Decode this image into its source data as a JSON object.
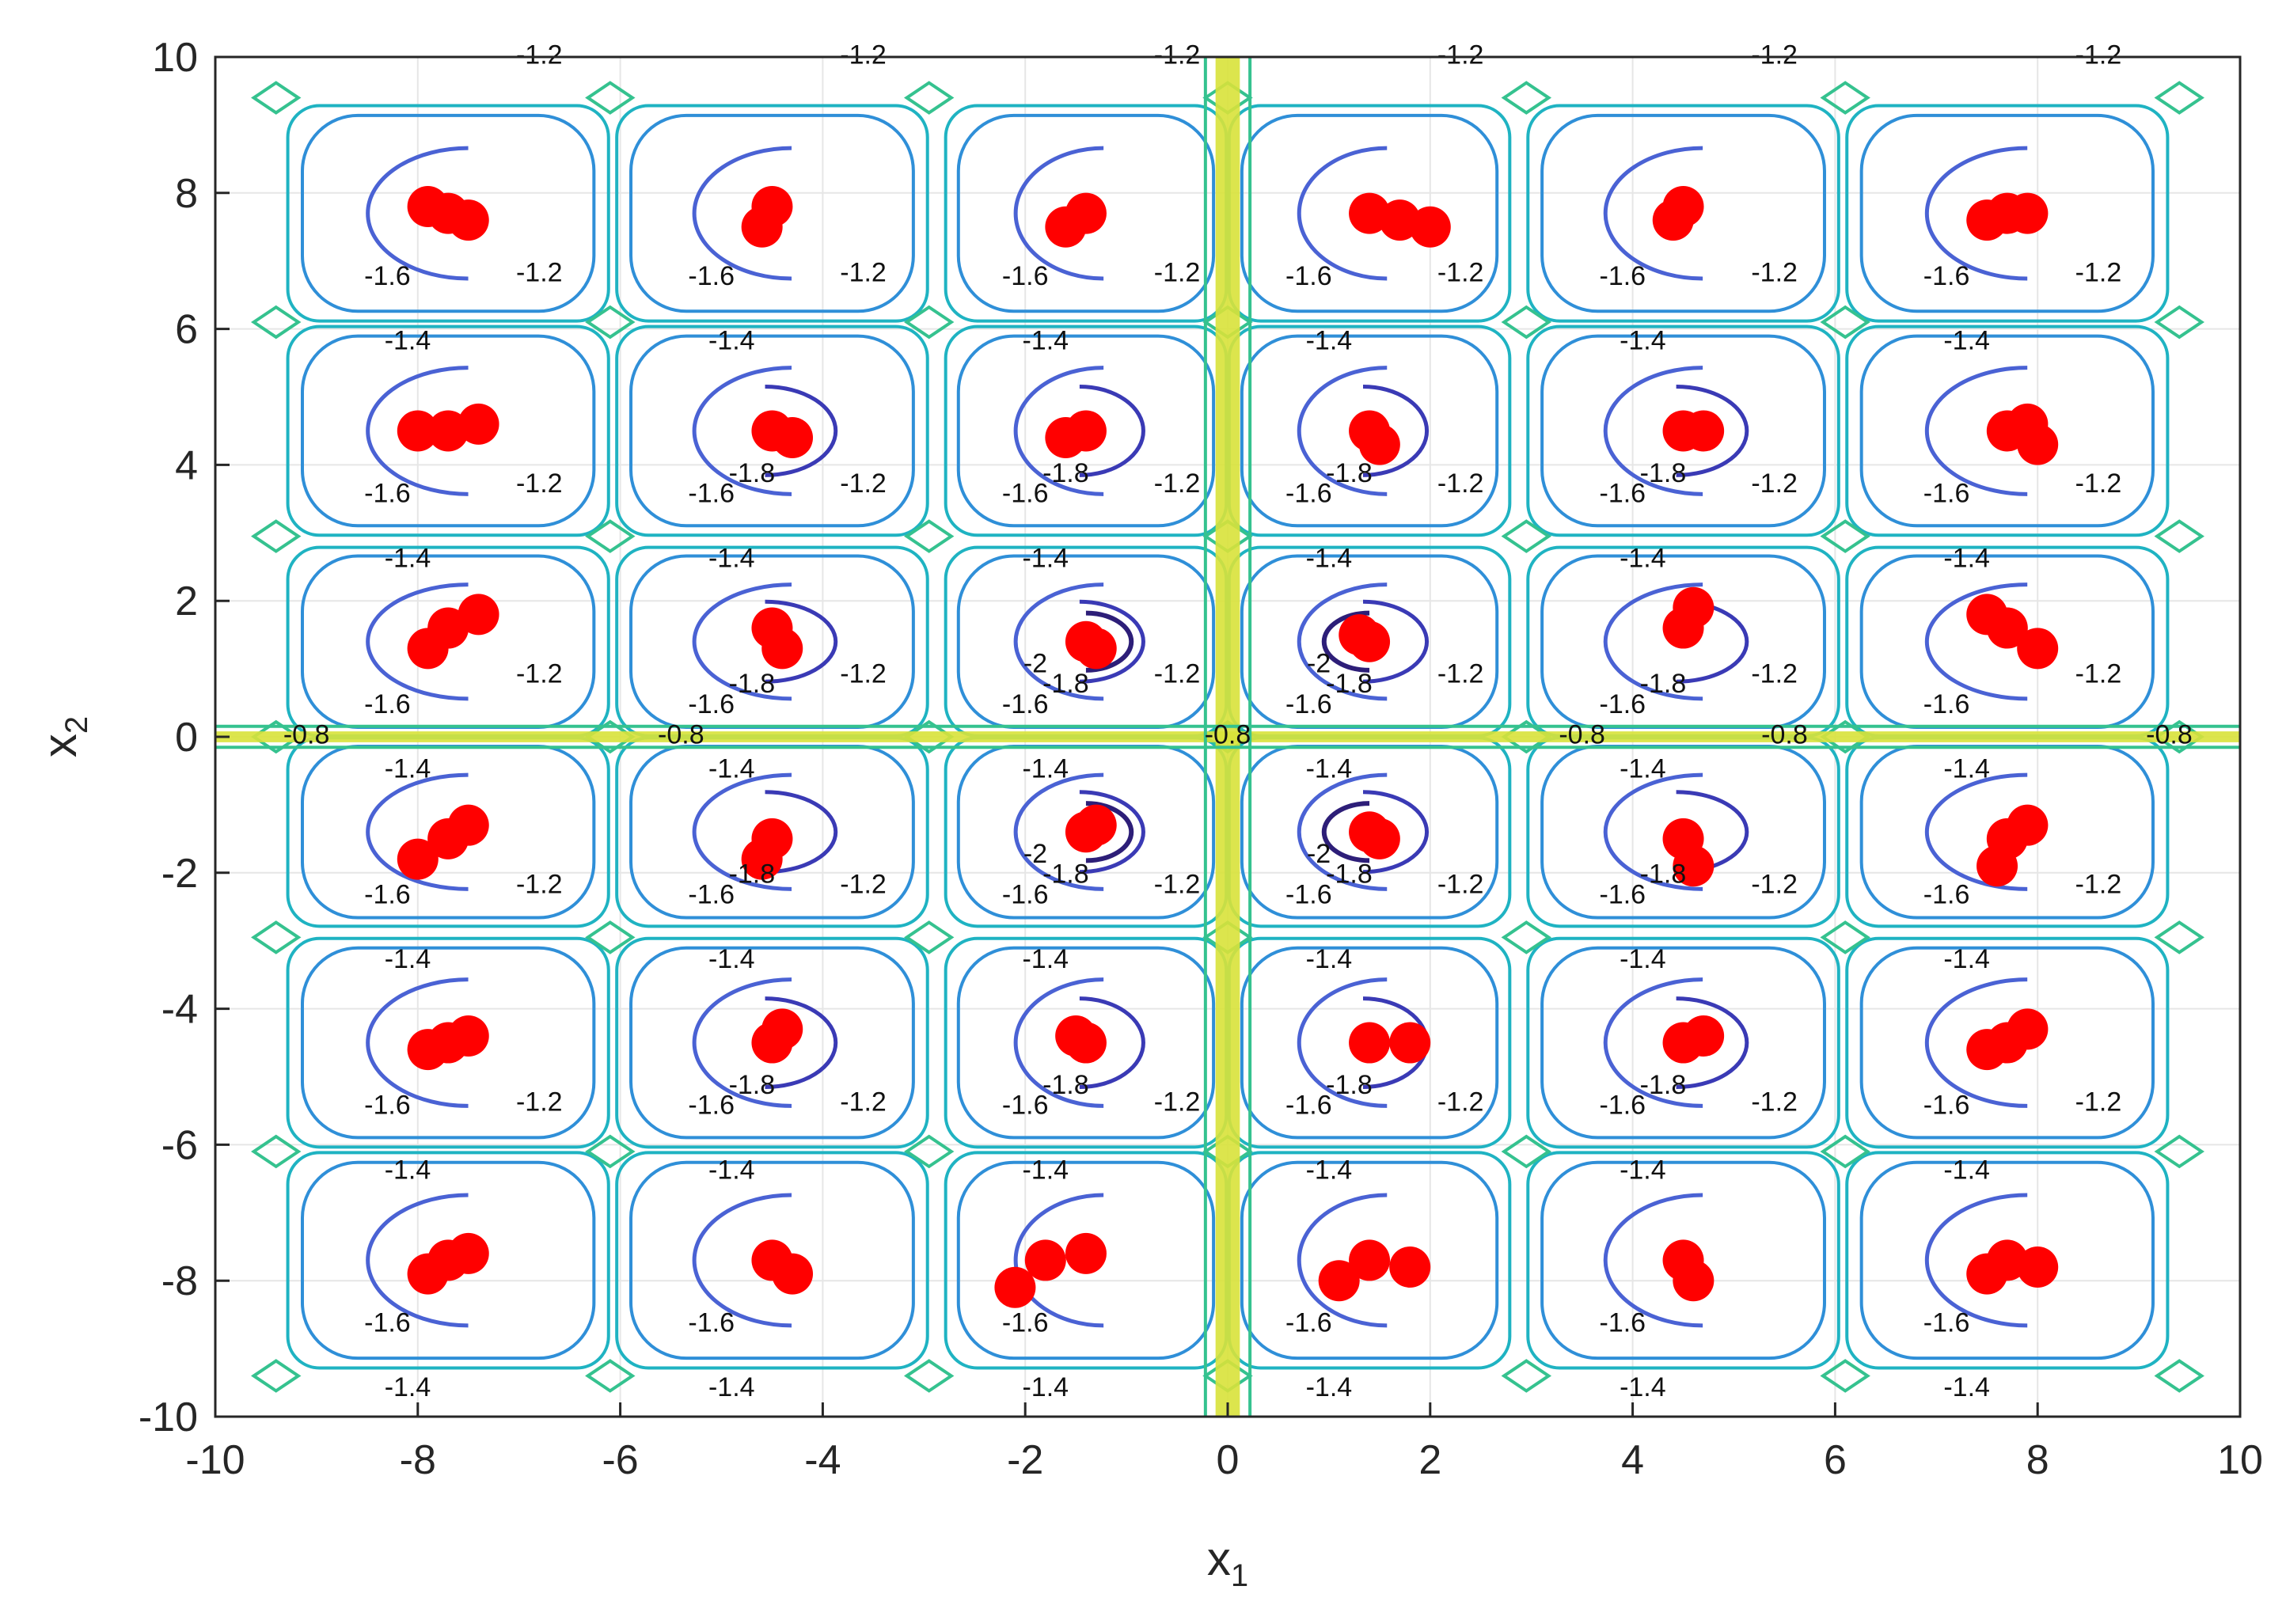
{
  "chart_data": {
    "type": "scatter",
    "title": "",
    "xlabel": "x",
    "xlabel_sub": "1",
    "ylabel": "x",
    "ylabel_sub": "2",
    "xlim": [
      -10,
      10
    ],
    "ylim": [
      -10,
      10
    ],
    "grid": true,
    "xticks": [
      -10,
      -8,
      -6,
      -4,
      -2,
      0,
      2,
      4,
      6,
      8,
      10
    ],
    "yticks": [
      -10,
      -8,
      -6,
      -4,
      -2,
      0,
      2,
      4,
      6,
      8,
      10
    ],
    "contour": {
      "levels": [
        -2,
        -1.8,
        -1.6,
        -1.4,
        -1.2,
        -1,
        -0.8
      ],
      "level_colors": {
        "-2": "#2d1e78",
        "-1.8": "#3a3ab5",
        "-1.6": "#4a62d4",
        "-1.4": "#2f8fd8",
        "-1.2": "#1fb3c2",
        "-1": "#35c28f",
        "-0.8": "#d8e23a"
      },
      "well_centers_x": [
        -7.7,
        -4.5,
        -1.4,
        1.4,
        4.5,
        7.7
      ],
      "well_centers_y": [
        -7.7,
        -4.5,
        -1.4,
        1.4,
        4.5,
        7.7
      ]
    },
    "series": [
      {
        "color": "#ff0000",
        "points": [
          [
            -7.7,
            7.7
          ],
          [
            -7.5,
            7.6
          ],
          [
            -7.9,
            7.8
          ],
          [
            -4.5,
            7.8
          ],
          [
            -4.6,
            7.5
          ],
          [
            -1.4,
            7.7
          ],
          [
            -1.6,
            7.5
          ],
          [
            1.4,
            7.7
          ],
          [
            1.7,
            7.6
          ],
          [
            2.0,
            7.5
          ],
          [
            4.5,
            7.8
          ],
          [
            4.4,
            7.6
          ],
          [
            7.7,
            7.7
          ],
          [
            7.5,
            7.6
          ],
          [
            7.9,
            7.7
          ],
          [
            -7.7,
            4.5
          ],
          [
            -7.4,
            4.6
          ],
          [
            -8.0,
            4.5
          ],
          [
            -4.5,
            4.5
          ],
          [
            -4.3,
            4.4
          ],
          [
            -1.4,
            4.5
          ],
          [
            -1.6,
            4.4
          ],
          [
            1.4,
            4.5
          ],
          [
            1.5,
            4.3
          ],
          [
            4.5,
            4.5
          ],
          [
            4.7,
            4.5
          ],
          [
            7.7,
            4.5
          ],
          [
            7.9,
            4.6
          ],
          [
            8.0,
            4.3
          ],
          [
            -7.7,
            1.6
          ],
          [
            -7.4,
            1.8
          ],
          [
            -7.9,
            1.3
          ],
          [
            -4.5,
            1.6
          ],
          [
            -4.4,
            1.3
          ],
          [
            -1.4,
            1.4
          ],
          [
            -1.3,
            1.3
          ],
          [
            1.4,
            1.4
          ],
          [
            1.3,
            1.5
          ],
          [
            4.5,
            1.6
          ],
          [
            4.6,
            1.9
          ],
          [
            7.7,
            1.6
          ],
          [
            7.5,
            1.8
          ],
          [
            8.0,
            1.3
          ],
          [
            -7.7,
            -1.5
          ],
          [
            -7.5,
            -1.3
          ],
          [
            -8.0,
            -1.8
          ],
          [
            -4.5,
            -1.5
          ],
          [
            -4.6,
            -1.8
          ],
          [
            -1.4,
            -1.4
          ],
          [
            -1.3,
            -1.3
          ],
          [
            1.4,
            -1.4
          ],
          [
            1.5,
            -1.5
          ],
          [
            4.5,
            -1.5
          ],
          [
            4.6,
            -1.9
          ],
          [
            7.7,
            -1.5
          ],
          [
            7.9,
            -1.3
          ],
          [
            7.6,
            -1.9
          ],
          [
            -7.7,
            -4.5
          ],
          [
            -7.5,
            -4.4
          ],
          [
            -7.9,
            -4.6
          ],
          [
            -4.5,
            -4.5
          ],
          [
            -4.4,
            -4.3
          ],
          [
            -1.4,
            -4.5
          ],
          [
            -1.5,
            -4.4
          ],
          [
            1.4,
            -4.5
          ],
          [
            1.8,
            -4.5
          ],
          [
            4.5,
            -4.5
          ],
          [
            4.7,
            -4.4
          ],
          [
            7.7,
            -4.5
          ],
          [
            7.9,
            -4.3
          ],
          [
            7.5,
            -4.6
          ],
          [
            -7.7,
            -7.7
          ],
          [
            -7.5,
            -7.6
          ],
          [
            -7.9,
            -7.9
          ],
          [
            -4.5,
            -7.7
          ],
          [
            -4.3,
            -7.9
          ],
          [
            -1.4,
            -7.6
          ],
          [
            -1.8,
            -7.7
          ],
          [
            -2.1,
            -8.1
          ],
          [
            1.4,
            -7.7
          ],
          [
            1.8,
            -7.8
          ],
          [
            1.1,
            -8.0
          ],
          [
            4.5,
            -7.7
          ],
          [
            4.6,
            -8.0
          ],
          [
            7.7,
            -7.7
          ],
          [
            7.5,
            -7.9
          ],
          [
            8.0,
            -7.8
          ]
        ]
      }
    ]
  }
}
